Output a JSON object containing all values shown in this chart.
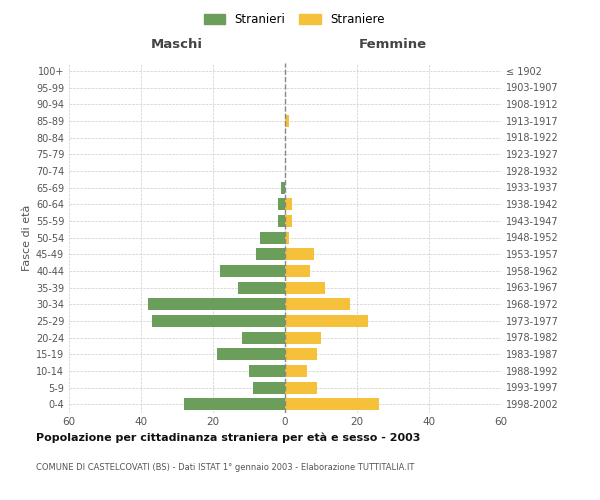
{
  "age_groups": [
    "0-4",
    "5-9",
    "10-14",
    "15-19",
    "20-24",
    "25-29",
    "30-34",
    "35-39",
    "40-44",
    "45-49",
    "50-54",
    "55-59",
    "60-64",
    "65-69",
    "70-74",
    "75-79",
    "80-84",
    "85-89",
    "90-94",
    "95-99",
    "100+"
  ],
  "birth_years": [
    "1998-2002",
    "1993-1997",
    "1988-1992",
    "1983-1987",
    "1978-1982",
    "1973-1977",
    "1968-1972",
    "1963-1967",
    "1958-1962",
    "1953-1957",
    "1948-1952",
    "1943-1947",
    "1938-1942",
    "1933-1937",
    "1928-1932",
    "1923-1927",
    "1918-1922",
    "1913-1917",
    "1908-1912",
    "1903-1907",
    "≤ 1902"
  ],
  "maschi": [
    28,
    9,
    10,
    19,
    12,
    37,
    38,
    13,
    18,
    8,
    7,
    2,
    2,
    1,
    0,
    0,
    0,
    0,
    0,
    0,
    0
  ],
  "femmine": [
    26,
    9,
    6,
    9,
    10,
    23,
    18,
    11,
    7,
    8,
    1,
    2,
    2,
    0,
    0,
    0,
    0,
    1,
    0,
    0,
    0
  ],
  "color_maschi": "#6a9e5a",
  "color_femmine": "#f5c13a",
  "title1": "Popolazione per cittadinanza straniera per età e sesso - 2003",
  "title2": "COMUNE DI CASTELCOVATI (BS) - Dati ISTAT 1° gennaio 2003 - Elaborazione TUTTITALIA.IT",
  "legend_maschi": "Stranieri",
  "legend_femmine": "Straniere",
  "xlabel_left": "Maschi",
  "xlabel_right": "Femmine",
  "ylabel_left": "Fasce di età",
  "xlim": 60,
  "background_color": "#ffffff",
  "grid_color": "#cccccc"
}
